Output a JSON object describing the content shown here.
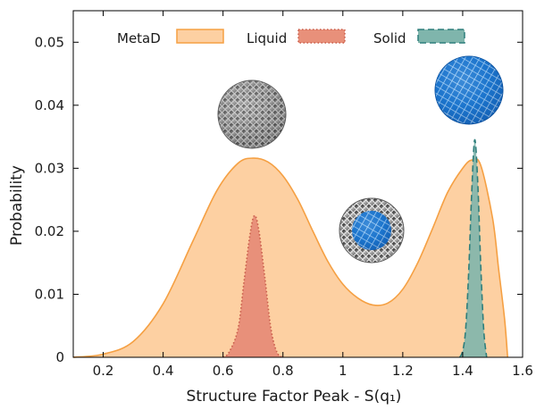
{
  "chart_data": {
    "type": "area",
    "xlabel": "Structure Factor Peak - S(q₁)",
    "ylabel": "Probability",
    "xlim": [
      0.1,
      1.6
    ],
    "ylim": [
      0,
      0.055
    ],
    "xticks": [
      0.2,
      0.4,
      0.6,
      0.8,
      1,
      1.2,
      1.4,
      1.6
    ],
    "xtick_labels": [
      "0.2",
      "0.4",
      "0.6",
      "0.8",
      "1",
      "1.2",
      "1.4",
      "1.6"
    ],
    "yticks": [
      0,
      0.01,
      0.02,
      0.03,
      0.04,
      0.05
    ],
    "ytick_labels": [
      "0",
      "0.01",
      "0.02",
      "0.03",
      "0.04",
      "0.05"
    ],
    "grid": false,
    "legend_position": "top",
    "series": [
      {
        "name": "MetaD",
        "fill": "#fdd0a2",
        "stroke": "#f5a043",
        "dash": "solid",
        "points": [
          [
            0.1,
            0
          ],
          [
            0.2,
            0.0005
          ],
          [
            0.3,
            0.0025
          ],
          [
            0.4,
            0.0085
          ],
          [
            0.5,
            0.0185
          ],
          [
            0.58,
            0.0265
          ],
          [
            0.65,
            0.0308
          ],
          [
            0.7,
            0.0316
          ],
          [
            0.75,
            0.031
          ],
          [
            0.8,
            0.0288
          ],
          [
            0.85,
            0.025
          ],
          [
            0.9,
            0.02
          ],
          [
            0.95,
            0.0152
          ],
          [
            1.0,
            0.0116
          ],
          [
            1.05,
            0.0094
          ],
          [
            1.1,
            0.0083
          ],
          [
            1.15,
            0.0086
          ],
          [
            1.2,
            0.0108
          ],
          [
            1.25,
            0.015
          ],
          [
            1.3,
            0.0205
          ],
          [
            1.35,
            0.0262
          ],
          [
            1.4,
            0.03
          ],
          [
            1.43,
            0.0313
          ],
          [
            1.46,
            0.0305
          ],
          [
            1.5,
            0.022
          ],
          [
            1.52,
            0.014
          ],
          [
            1.54,
            0.006
          ],
          [
            1.55,
            0
          ]
        ]
      },
      {
        "name": "Liquid",
        "fill": "#e8907a",
        "stroke": "#c95d4a",
        "dash": "dotted",
        "points": [
          [
            0.6,
            0
          ],
          [
            0.62,
            0.0008
          ],
          [
            0.65,
            0.0045
          ],
          [
            0.67,
            0.012
          ],
          [
            0.69,
            0.0195
          ],
          [
            0.705,
            0.0225
          ],
          [
            0.72,
            0.02
          ],
          [
            0.74,
            0.0125
          ],
          [
            0.76,
            0.0045
          ],
          [
            0.78,
            0.0008
          ],
          [
            0.8,
            0
          ]
        ]
      },
      {
        "name": "Solid",
        "fill": "#7fb5ac",
        "stroke": "#2f7f7c",
        "dash": "dashed",
        "points": [
          [
            1.39,
            0
          ],
          [
            1.4,
            0.001
          ],
          [
            1.41,
            0.0045
          ],
          [
            1.42,
            0.0135
          ],
          [
            1.43,
            0.026
          ],
          [
            1.44,
            0.0345
          ],
          [
            1.45,
            0.028
          ],
          [
            1.46,
            0.015
          ],
          [
            1.47,
            0.0045
          ],
          [
            1.48,
            0
          ]
        ]
      }
    ]
  },
  "icons": {
    "liquid_cluster": "disordered-nanocluster-icon",
    "mixed_cluster": "partially-crystalline-nanocluster-icon",
    "solid_cluster": "crystalline-nanocluster-icon"
  }
}
